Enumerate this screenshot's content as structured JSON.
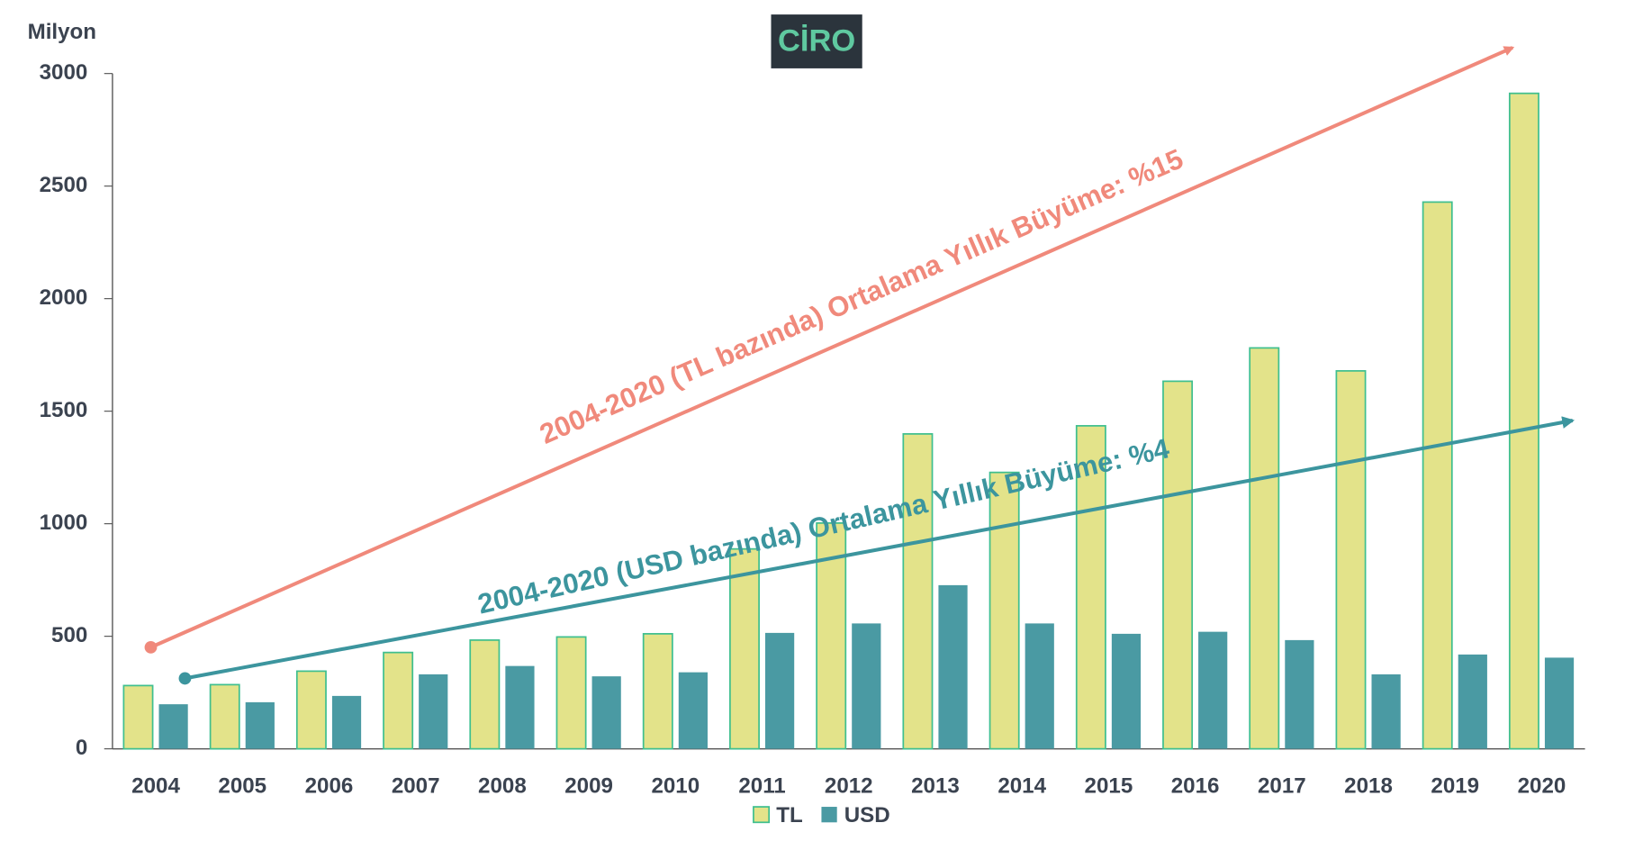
{
  "chart_data": {
    "type": "bar",
    "title": "CİRO",
    "y_label": "Milyon",
    "categories": [
      "2004",
      "2005",
      "2006",
      "2007",
      "2008",
      "2009",
      "2010",
      "2011",
      "2012",
      "2013",
      "2014",
      "2015",
      "2016",
      "2017",
      "2018",
      "2019",
      "2020"
    ],
    "series": [
      {
        "name": "TL",
        "color": "#e3e38a",
        "values": [
          281,
          285,
          345,
          428,
          483,
          497,
          511,
          888,
          1003,
          1399,
          1228,
          1435,
          1633,
          1781,
          1679,
          2429,
          2912
        ]
      },
      {
        "name": "USD",
        "color": "#4a9aa3",
        "values": [
          198,
          207,
          235,
          331,
          368,
          322,
          340,
          515,
          557,
          727,
          557,
          511,
          520,
          483,
          331,
          419,
          405
        ]
      }
    ],
    "ylim": [
      0,
      3000
    ],
    "yticks": [
      0,
      500,
      1000,
      1500,
      2000,
      2500,
      3000
    ],
    "grid": false,
    "legend": "bottom",
    "annotations": [
      "2004-2020  (TL bazında) Ortalama Yıllık Büyüme: %15",
      "2004-2020 (USD bazında) Ortalama Yıllık Büyüme: %4"
    ]
  }
}
